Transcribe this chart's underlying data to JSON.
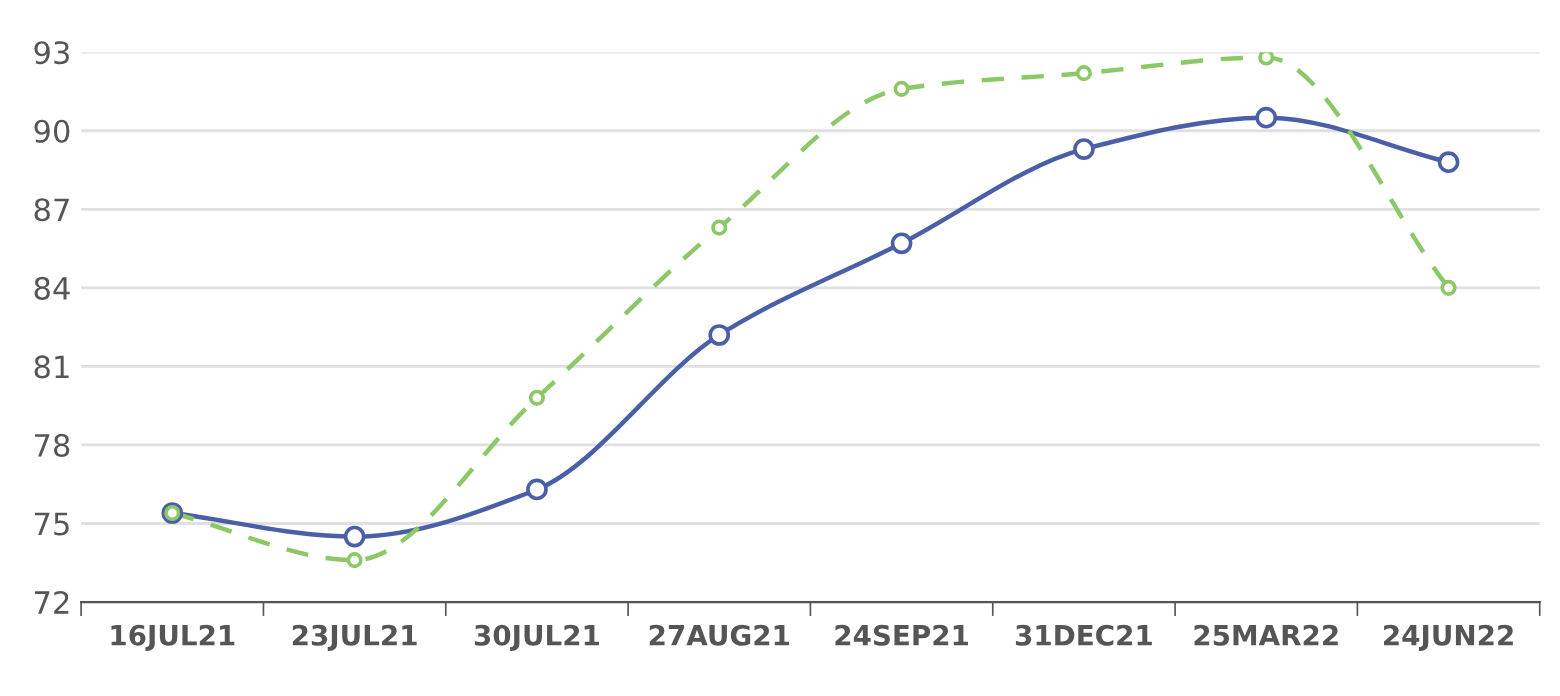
{
  "chart_data": {
    "type": "line",
    "categories": [
      "16JUL21",
      "23JUL21",
      "30JUL21",
      "27AUG21",
      "24SEP21",
      "31DEC21",
      "25MAR22",
      "24JUN22"
    ],
    "series": [
      {
        "color": "#4a5fa8",
        "line_style": "solid",
        "values": [
          75.4,
          74.5,
          76.3,
          82.2,
          85.7,
          89.3,
          90.5,
          88.8
        ]
      },
      {
        "color": "#8cc866",
        "line_style": "dashed",
        "values": [
          75.4,
          73.6,
          79.8,
          86.3,
          91.6,
          92.2,
          92.8,
          84.0
        ]
      }
    ],
    "ylim": [
      72,
      93
    ],
    "yticks": [
      72,
      75,
      78,
      81,
      84,
      87,
      90,
      93
    ],
    "grid": "y",
    "marker": "circle",
    "legend": false
  }
}
